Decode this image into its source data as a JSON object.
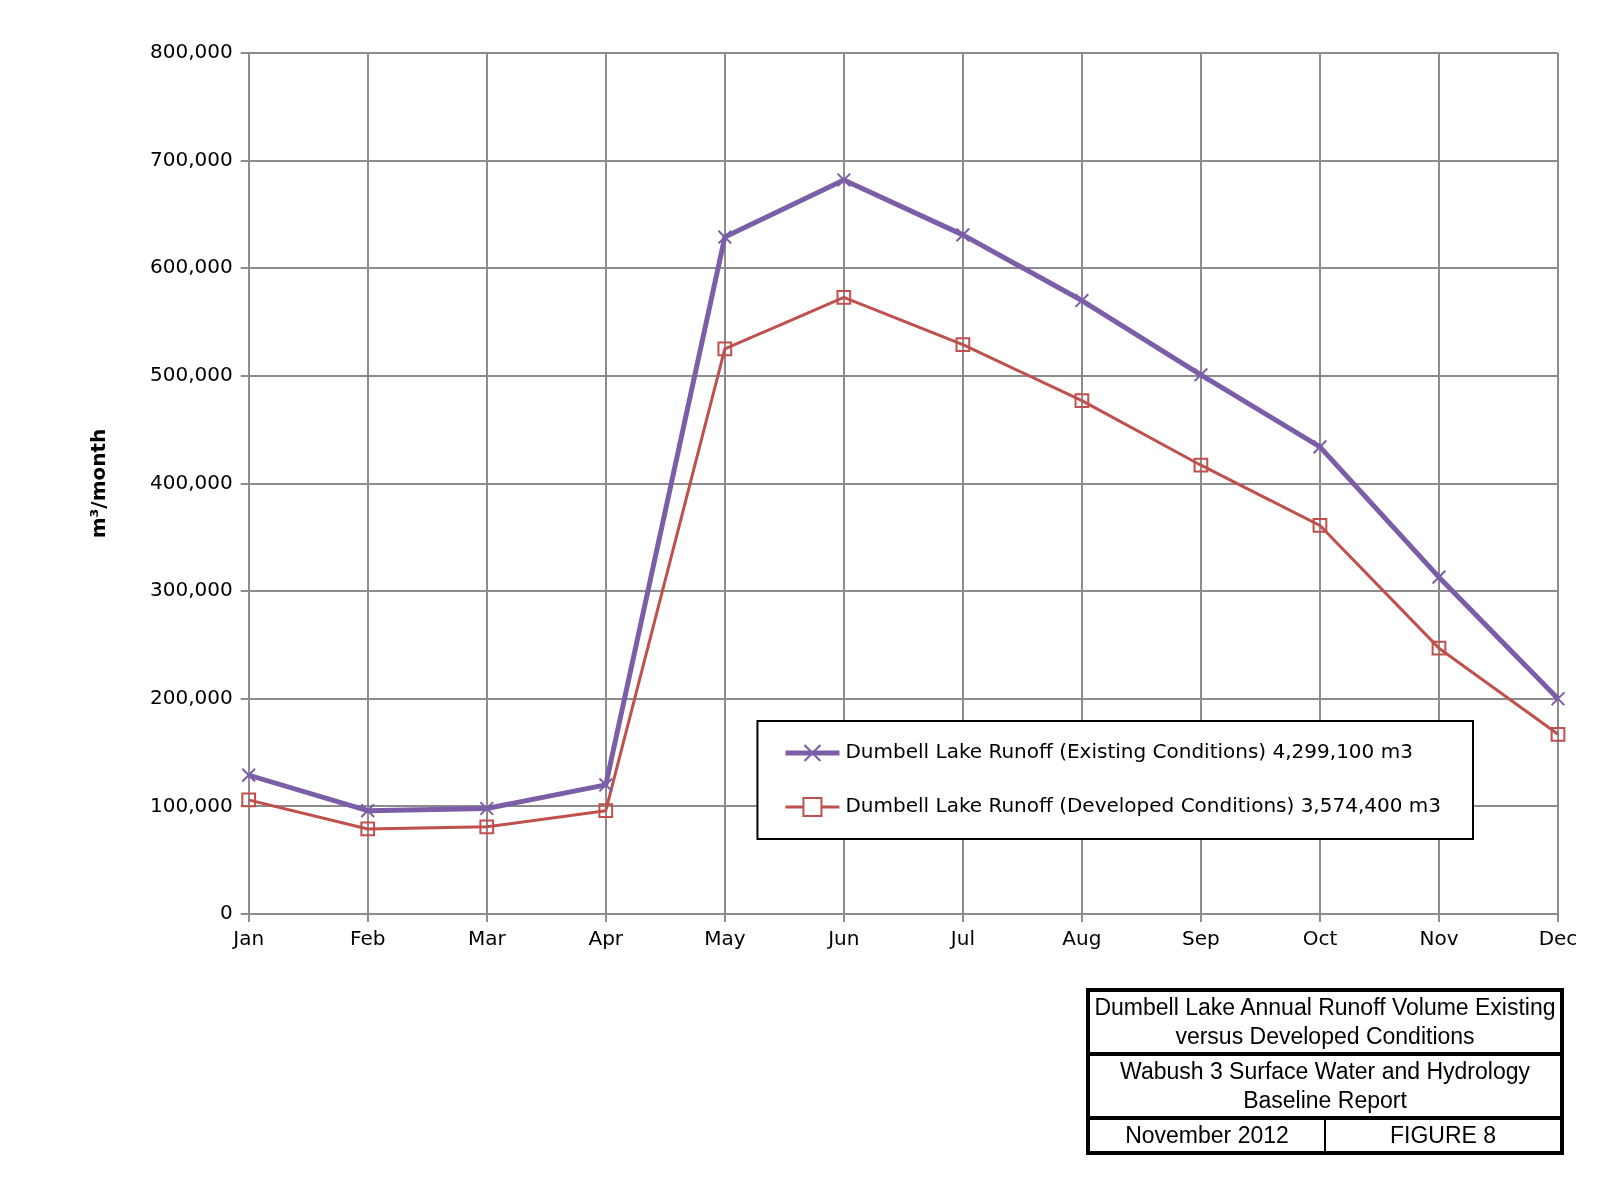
{
  "chart_data": {
    "type": "line",
    "ylabel": "m³/month",
    "categories": [
      "Jan",
      "Feb",
      "Mar",
      "Apr",
      "May",
      "Jun",
      "Jul",
      "Aug",
      "Sep",
      "Oct",
      "Nov",
      "Dec"
    ],
    "series": [
      {
        "name": "Dumbell Lake Runoff (Existing Conditions) 4,299,100 m3",
        "color": "#7b5ea7",
        "marker": "cross",
        "values": [
          129000,
          96000,
          98000,
          120000,
          629000,
          682000,
          631000,
          570000,
          501000,
          434000,
          313000,
          200000
        ]
      },
      {
        "name": "Dumbell Lake Runoff (Developed Conditions) 3,574,400 m3",
        "color": "#c0504d",
        "marker": "square",
        "values": [
          106000,
          79000,
          81000,
          96000,
          525000,
          573000,
          529000,
          477000,
          417000,
          361000,
          247000,
          167000
        ]
      }
    ],
    "ylim": [
      0,
      800000
    ],
    "yticks": [
      {
        "value": 0,
        "label": "0"
      },
      {
        "value": 100000,
        "label": "100,000"
      },
      {
        "value": 200000,
        "label": "200,000"
      },
      {
        "value": 300000,
        "label": "300,000"
      },
      {
        "value": 400000,
        "label": "400,000"
      },
      {
        "value": 500000,
        "label": "500,000"
      },
      {
        "value": 600000,
        "label": "600,000"
      },
      {
        "value": 700000,
        "label": "700,000"
      },
      {
        "value": 800000,
        "label": "800,000"
      }
    ],
    "grid": true,
    "legend": "bottom right",
    "line_style": "solid",
    "annotations": [
      "Dumbell Lake Annual Runoff Volume Existing versus Developed Conditions",
      "Wabush 3 Surface Water and Hydrology Baseline Report",
      "November 2012",
      "FIGURE 8"
    ]
  }
}
